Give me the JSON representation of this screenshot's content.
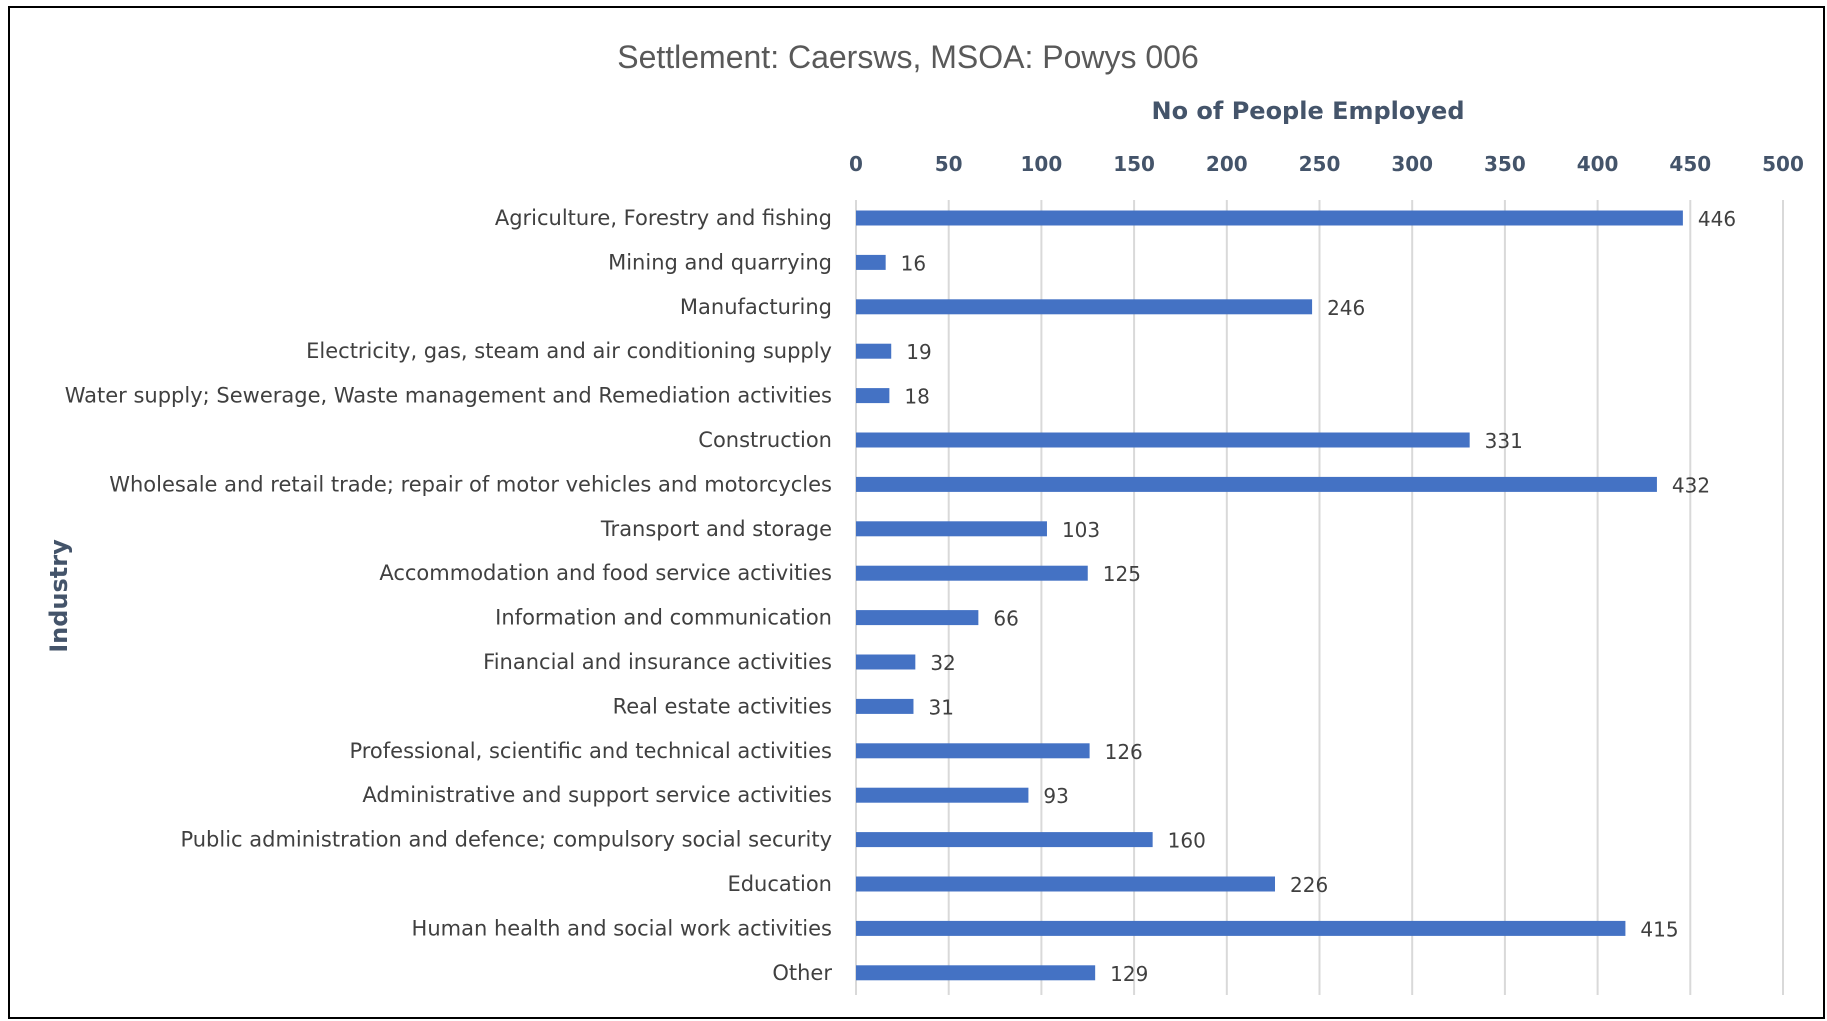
{
  "chart_data": {
    "type": "bar",
    "orientation": "horizontal",
    "title": "Settlement: Caersws,  MSOA: Powys 006",
    "xlabel": "No of People Employed",
    "ylabel": "Industry",
    "xlim": [
      0,
      500
    ],
    "ticks": [
      "0",
      "50",
      "100",
      "150",
      "200",
      "250",
      "300",
      "350",
      "400",
      "450",
      "500"
    ],
    "tick_values": [
      0,
      50,
      100,
      150,
      200,
      250,
      300,
      350,
      400,
      450,
      500
    ],
    "x_axis_position": "top",
    "grid": true,
    "legend": "none",
    "bar_color": "#4472c4",
    "categories": [
      "Agriculture, Forestry and fishing",
      "Mining and quarrying",
      "Manufacturing",
      "Electricity, gas, steam and air conditioning supply",
      "Water supply; Sewerage, Waste management and Remediation activities",
      "Construction",
      "Wholesale and retail trade; repair of motor vehicles and motorcycles",
      "Transport and storage",
      "Accommodation and food service activities",
      "Information and communication",
      "Financial and insurance activities",
      "Real estate activities",
      "Professional, scientific and technical activities",
      "Administrative and support service activities",
      "Public administration and defence; compulsory social security",
      "Education",
      "Human health and social work activities",
      "Other"
    ],
    "values": [
      446,
      16,
      246,
      19,
      18,
      331,
      432,
      103,
      125,
      66,
      32,
      31,
      126,
      93,
      160,
      226,
      415,
      129
    ],
    "data_labels": [
      "446",
      "16",
      "246",
      "19",
      "18",
      "331",
      "432",
      "103",
      "125",
      "66",
      "32",
      "31",
      "126",
      "93",
      "160",
      "226",
      "415",
      "129"
    ]
  }
}
